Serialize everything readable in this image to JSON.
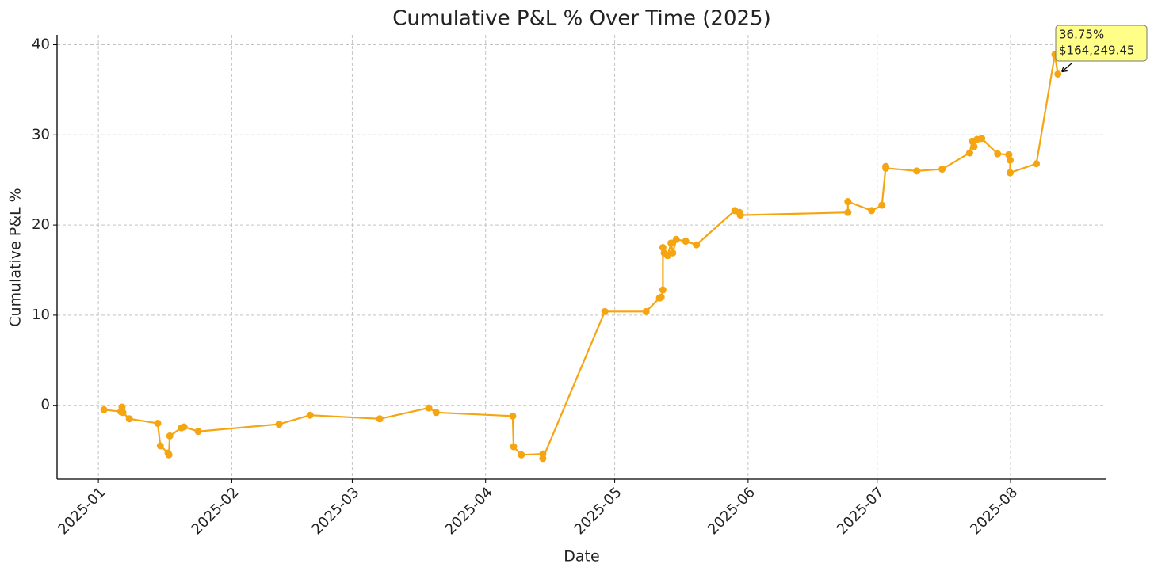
{
  "chart_data": {
    "type": "line",
    "title": "Cumulative P&L % Over Time (2025)",
    "x_label": "Date",
    "y_label": "Cumulative P&L %",
    "color": "#f5a511",
    "x": [
      1.3,
      5.2,
      5.5,
      5.7,
      7.2,
      13.8,
      14.4,
      16.2,
      16.4,
      16.6,
      19.3,
      19.9,
      23.2,
      42,
      49.2,
      65.4,
      76.8,
      78.5,
      96.3,
      96.5,
      98.3,
      103.3,
      103.3,
      117.7,
      127.3,
      130.4,
      130.8,
      131.2,
      131.2,
      131.5,
      132.3,
      133.1,
      133.5,
      134.3,
      136.5,
      139.0,
      147.9,
      149.0,
      149.2,
      174.2,
      174.2,
      179.7,
      182.1,
      183.0,
      183.0,
      190.2,
      196.1,
      202.5,
      203.1,
      203.5,
      204.2,
      205.3,
      209.0,
      211.6,
      211.9,
      211.9,
      218.0,
      222.3,
      223.0
    ],
    "values": [
      -0.5,
      -0.7,
      -0.2,
      -0.8,
      -1.5,
      -2.0,
      -4.5,
      -5.3,
      -5.5,
      -3.4,
      -2.5,
      -2.4,
      -2.9,
      -2.1,
      -1.1,
      -1.5,
      -0.3,
      -0.8,
      -1.2,
      -4.6,
      -5.5,
      -5.4,
      -5.9,
      10.4,
      10.4,
      11.9,
      12.0,
      12.8,
      17.5,
      16.9,
      16.6,
      18.0,
      16.9,
      18.4,
      18.2,
      17.8,
      21.6,
      21.4,
      21.1,
      21.4,
      22.6,
      21.6,
      22.2,
      26.5,
      26.3,
      26.0,
      26.2,
      28.0,
      29.3,
      28.7,
      29.5,
      29.6,
      27.9,
      27.8,
      27.2,
      25.8,
      26.8,
      38.9,
      36.75
    ],
    "xlim": [
      -9.6,
      234.1
    ],
    "xticks": [
      {
        "value": 0,
        "label": "2025-01"
      },
      {
        "value": 31,
        "label": "2025-02"
      },
      {
        "value": 59,
        "label": "2025-03"
      },
      {
        "value": 90,
        "label": "2025-04"
      },
      {
        "value": 120,
        "label": "2025-05"
      },
      {
        "value": 151,
        "label": "2025-06"
      },
      {
        "value": 181,
        "label": "2025-07"
      },
      {
        "value": 212,
        "label": "2025-08"
      }
    ],
    "ylim": [
      -8.2,
      41.1
    ],
    "yticks": [
      0,
      10,
      20,
      30,
      40
    ],
    "grid": true,
    "annotation": [
      "36.75%",
      "$164,249.45"
    ]
  }
}
